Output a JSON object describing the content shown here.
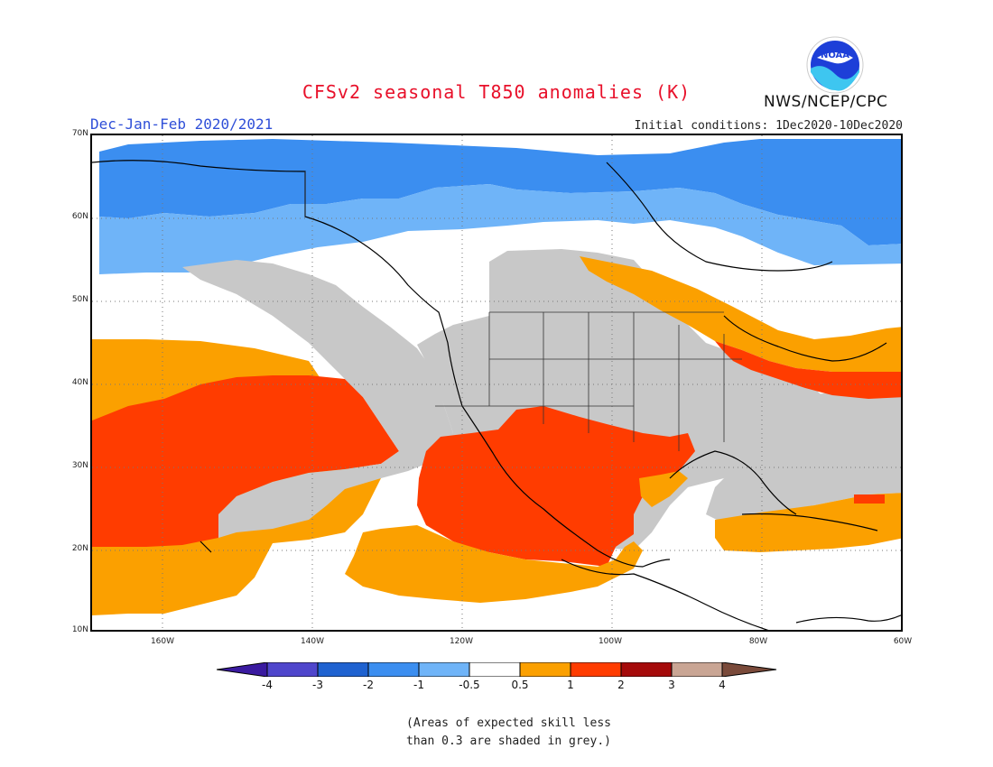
{
  "header": {
    "title": "CFSv2 seasonal T850 anomalies (K)",
    "season": "Dec-Jan-Feb 2020/2021",
    "initial_conditions": "Initial conditions: 1Dec2020-10Dec2020",
    "org": "NWS/NCEP/CPC",
    "logo_text": "NOAA"
  },
  "map": {
    "lat_labels": [
      "70N",
      "60N",
      "50N",
      "40N",
      "30N",
      "20N",
      "10N"
    ],
    "lon_labels": [
      "160W",
      "140W",
      "120W",
      "100W",
      "80W",
      "60W"
    ],
    "colors": {
      "deep_blue": "#1f62d0",
      "blue": "#3b8ef0",
      "light_blue": "#6fb4f8",
      "orange": "#fba000",
      "red_orange": "#ff3c00",
      "grey": "#c8c8c8",
      "white": "#ffffff"
    }
  },
  "colorbar": {
    "labels": [
      "-4",
      "-3",
      "-2",
      "-1",
      "-0.5",
      "0.5",
      "1",
      "2",
      "3",
      "4"
    ],
    "colors": [
      "#3a1aa0",
      "#4f46cc",
      "#1f62d0",
      "#3b8ef0",
      "#6fb4f8",
      "#ffffff",
      "#fba000",
      "#ff3c00",
      "#a50a0a",
      "#c9a594",
      "#7a4a3a"
    ]
  },
  "note": {
    "line1": "(Areas of expected skill less",
    "line2": "than 0.3 are shaded in grey.)"
  }
}
